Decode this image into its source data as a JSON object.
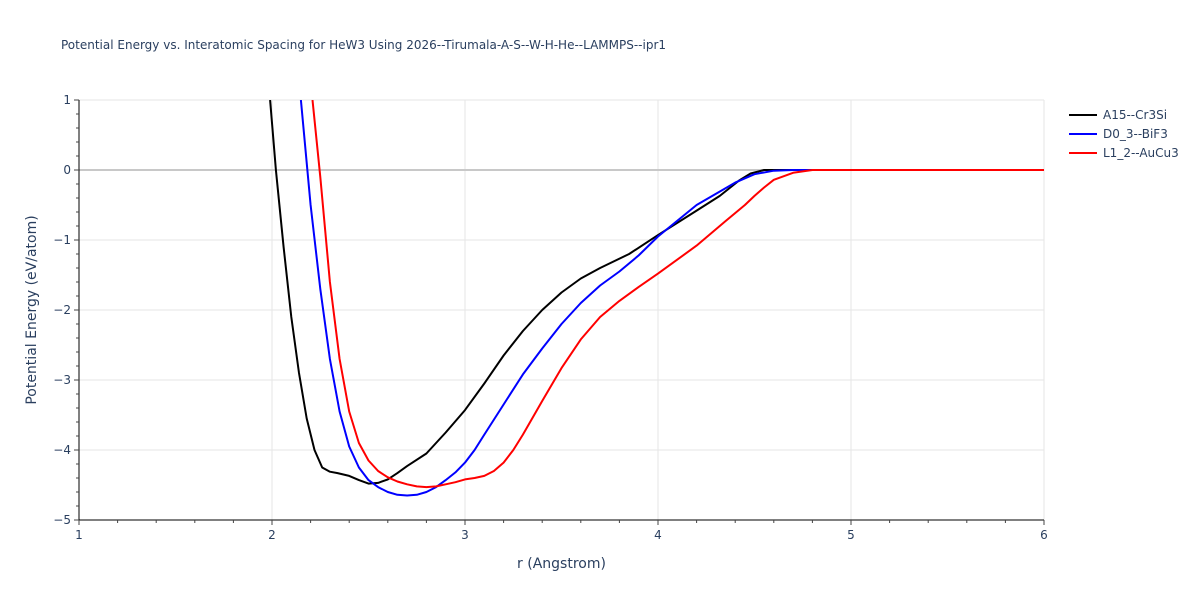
{
  "chart_data": {
    "type": "line",
    "title": "Potential Energy vs. Interatomic Spacing for HeW3 Using 2026--Tirumala-A-S--W-H-He--LAMMPS--ipr1",
    "xlabel": "r (Angstrom)",
    "ylabel": "Potential Energy (eV/atom)",
    "xlim": [
      1,
      6
    ],
    "ylim": [
      -5,
      1
    ],
    "xticks": [
      1,
      2,
      3,
      4,
      5,
      6
    ],
    "xtick_labels": [
      "1",
      "2",
      "3",
      "4",
      "5",
      "6"
    ],
    "yticks": [
      1,
      0,
      -1,
      -2,
      -3,
      -4,
      -5
    ],
    "ytick_labels": [
      "1",
      "0",
      "−1",
      "−2",
      "−3",
      "−4",
      "−5"
    ],
    "grid": true,
    "legend_position": "top-right",
    "series": [
      {
        "name": "A15--Cr3Si",
        "color": "#000000",
        "x": [
          1.99,
          2.02,
          2.06,
          2.1,
          2.14,
          2.18,
          2.22,
          2.26,
          2.3,
          2.34,
          2.4,
          2.45,
          2.5,
          2.55,
          2.6,
          2.65,
          2.7,
          2.8,
          2.9,
          3.0,
          3.1,
          3.2,
          3.3,
          3.4,
          3.5,
          3.6,
          3.7,
          3.85,
          4.0,
          4.2,
          4.32,
          4.42,
          4.48,
          4.55,
          4.62,
          4.7,
          4.8,
          5.0,
          5.5,
          6.0
        ],
        "y": [
          1.0,
          0.0,
          -1.1,
          -2.1,
          -2.9,
          -3.55,
          -4.0,
          -4.25,
          -4.31,
          -4.33,
          -4.37,
          -4.43,
          -4.48,
          -4.47,
          -4.42,
          -4.33,
          -4.23,
          -4.05,
          -3.75,
          -3.43,
          -3.05,
          -2.65,
          -2.3,
          -2.0,
          -1.75,
          -1.55,
          -1.4,
          -1.2,
          -0.93,
          -0.58,
          -0.37,
          -0.15,
          -0.05,
          0.0,
          0.0,
          0.0,
          0.0,
          0.0,
          0.0,
          0.0
        ]
      },
      {
        "name": "D0_3--BiF3",
        "color": "#0000ff",
        "x": [
          2.15,
          2.2,
          2.25,
          2.3,
          2.35,
          2.4,
          2.45,
          2.5,
          2.55,
          2.6,
          2.65,
          2.7,
          2.75,
          2.8,
          2.85,
          2.9,
          2.95,
          3.0,
          3.05,
          3.1,
          3.2,
          3.3,
          3.4,
          3.5,
          3.6,
          3.7,
          3.8,
          3.9,
          4.0,
          4.2,
          4.4,
          4.5,
          4.6,
          4.7,
          4.8,
          5.0,
          5.5,
          6.0
        ],
        "y": [
          1.0,
          -0.5,
          -1.7,
          -2.7,
          -3.45,
          -3.95,
          -4.25,
          -4.43,
          -4.53,
          -4.6,
          -4.64,
          -4.65,
          -4.64,
          -4.6,
          -4.53,
          -4.43,
          -4.32,
          -4.18,
          -4.0,
          -3.78,
          -3.35,
          -2.92,
          -2.55,
          -2.2,
          -1.9,
          -1.65,
          -1.45,
          -1.22,
          -0.95,
          -0.5,
          -0.18,
          -0.06,
          -0.01,
          0.0,
          0.0,
          0.0,
          0.0,
          0.0
        ]
      },
      {
        "name": "L1_2--AuCu3",
        "color": "#ff0000",
        "x": [
          2.21,
          2.25,
          2.3,
          2.35,
          2.4,
          2.45,
          2.5,
          2.55,
          2.6,
          2.65,
          2.7,
          2.75,
          2.8,
          2.85,
          2.9,
          2.95,
          3.0,
          3.05,
          3.1,
          3.15,
          3.2,
          3.25,
          3.3,
          3.4,
          3.5,
          3.6,
          3.7,
          3.8,
          3.9,
          4.0,
          4.2,
          4.35,
          4.45,
          4.5,
          4.55,
          4.6,
          4.7,
          4.8,
          5.0,
          5.5,
          6.0
        ],
        "y": [
          1.0,
          -0.1,
          -1.6,
          -2.7,
          -3.45,
          -3.9,
          -4.15,
          -4.3,
          -4.39,
          -4.45,
          -4.49,
          -4.52,
          -4.53,
          -4.52,
          -4.49,
          -4.46,
          -4.42,
          -4.4,
          -4.37,
          -4.3,
          -4.18,
          -4.0,
          -3.78,
          -3.3,
          -2.83,
          -2.42,
          -2.1,
          -1.87,
          -1.67,
          -1.48,
          -1.08,
          -0.73,
          -0.5,
          -0.37,
          -0.25,
          -0.14,
          -0.04,
          0.0,
          0.0,
          0.0,
          0.0
        ]
      }
    ]
  }
}
